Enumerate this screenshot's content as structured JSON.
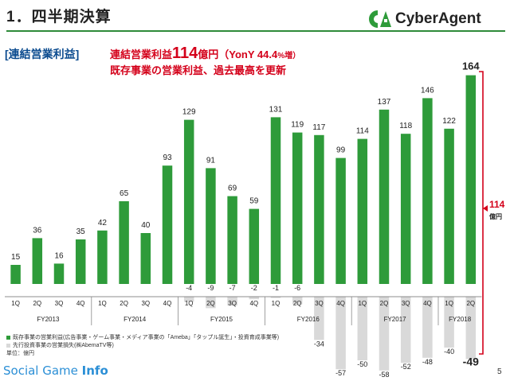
{
  "header": {
    "title": "1．四半期決算",
    "logo_text": "CyberAgent"
  },
  "section_label": "[連結営業利益]",
  "headline": {
    "line1_prefix": "連結営業利益",
    "line1_value": "114",
    "line1_unit": "億円（YonY 44.4",
    "line1_suffix": "%増）",
    "line2": "既存事業の営業利益、過去最高を更新"
  },
  "bracket": {
    "value": "114",
    "unit": "億円"
  },
  "legend": {
    "items": [
      {
        "label": "既存事業の営業利益(広告事業・ゲーム事業・メディア事業の「Ameba」「タップル誕生」・投資育成事業等)",
        "color": "#2e9b3a"
      },
      {
        "label": "先行投資事業の営業損失(㈱AbemaTV等)",
        "color": "#d9d9d9"
      }
    ],
    "unit_note": "単位：億円"
  },
  "footer": {
    "brand_regular": "Social Game ",
    "brand_bold": "Info",
    "page": "5"
  },
  "colors": {
    "positive": "#2e9b3a",
    "negative": "#d9d9d9",
    "accent": "#d4001a",
    "brand_green": "#2e8b3a"
  },
  "chart_data": {
    "type": "bar",
    "categories": [
      "1Q",
      "2Q",
      "3Q",
      "4Q",
      "1Q",
      "2Q",
      "3Q",
      "4Q",
      "1Q",
      "2Q",
      "3Q",
      "4Q",
      "1Q",
      "2Q",
      "3Q",
      "4Q",
      "1Q",
      "2Q",
      "3Q",
      "4Q",
      "1Q",
      "2Q"
    ],
    "fiscal_years": [
      {
        "label": "FY2013",
        "span": 4
      },
      {
        "label": "FY2014",
        "span": 4
      },
      {
        "label": "FY2015",
        "span": 4
      },
      {
        "label": "FY2016",
        "span": 4
      },
      {
        "label": "FY2017",
        "span": 4
      },
      {
        "label": "FY2018",
        "span": 2
      }
    ],
    "series": [
      {
        "values": [
          15,
          36,
          16,
          35,
          42,
          65,
          40,
          93,
          129,
          91,
          69,
          59,
          131,
          119,
          117,
          99,
          114,
          137,
          118,
          146,
          122,
          164
        ]
      },
      {
        "values": [
          null,
          null,
          null,
          null,
          null,
          null,
          null,
          null,
          -4,
          -9,
          -7,
          -2,
          -1,
          -6,
          -34,
          -57,
          -50,
          -58,
          -52,
          -48,
          -40,
          -49
        ]
      }
    ],
    "data_labels_positive": [
      "15",
      "36",
      "16",
      "35",
      "42",
      "65",
      "40",
      "93",
      "129",
      "91",
      "69",
      "59",
      "131",
      "119",
      "117",
      "99",
      "114",
      "137",
      "118",
      "146",
      "122",
      "164"
    ],
    "data_labels_negative": [
      "",
      "",
      "",
      "",
      "",
      "",
      "",
      "",
      "-4",
      "-9",
      "-7",
      "-2",
      "-1",
      "-6",
      "-34",
      "-57",
      "-50",
      "-58",
      "-52",
      "-48",
      "-40",
      "-49"
    ],
    "ylim": [
      -60,
      170
    ],
    "grid": false
  }
}
